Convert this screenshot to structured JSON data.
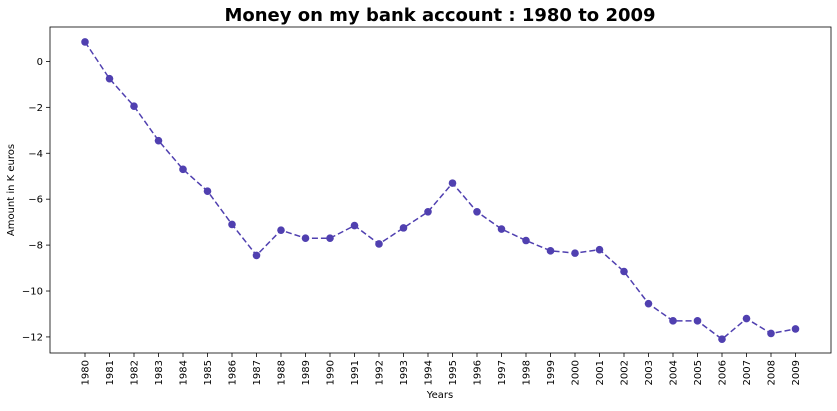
{
  "chart_data": {
    "type": "line",
    "title": "Money on my bank account : 1980 to 2009",
    "xlabel": "Years",
    "ylabel": "Amount in K euros",
    "categories": [
      "1980",
      "1981",
      "1982",
      "1983",
      "1984",
      "1985",
      "1986",
      "1987",
      "1988",
      "1989",
      "1990",
      "1991",
      "1992",
      "1993",
      "1994",
      "1995",
      "1996",
      "1997",
      "1998",
      "1999",
      "2000",
      "2001",
      "2002",
      "2003",
      "2004",
      "2005",
      "2006",
      "2007",
      "2008",
      "2009"
    ],
    "values": [
      0.85,
      -0.75,
      -1.95,
      -3.45,
      -4.7,
      -5.65,
      -7.1,
      -8.45,
      -7.35,
      -7.7,
      -7.7,
      -7.15,
      -7.95,
      -7.25,
      -6.55,
      -5.3,
      -6.55,
      -7.3,
      -7.8,
      -8.25,
      -8.35,
      -8.2,
      -9.15,
      -10.55,
      -11.3,
      -11.3,
      -12.1,
      -11.2,
      -11.85,
      -11.65
    ],
    "ylim": [
      -12.7,
      1.5
    ],
    "yticks": [
      0,
      -2,
      -4,
      -6,
      -8,
      -10,
      -12
    ],
    "ytick_labels": [
      "0",
      "−2",
      "−4",
      "−6",
      "−8",
      "−10",
      "−12"
    ],
    "grid": false,
    "line_style": "dashed",
    "marker": "circle",
    "color": "#5040b0"
  }
}
